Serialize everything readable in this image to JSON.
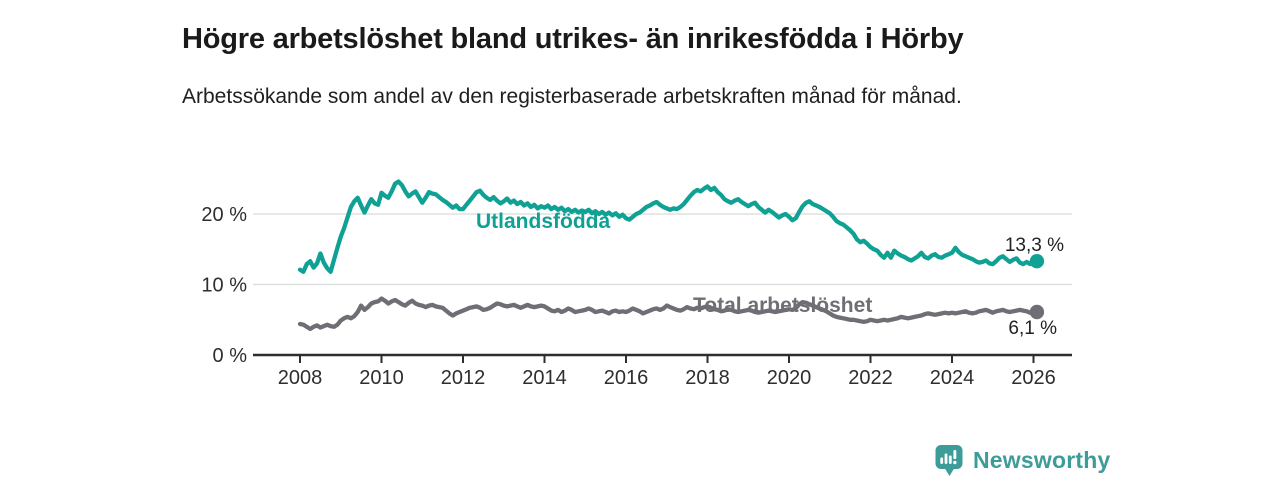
{
  "header": {
    "title": "Högre arbetslöshet bland utrikes- än inrikesfödda i Hörby",
    "subtitle": "Arbetssökande som andel av den registerbaserade arbetskraften månad för månad."
  },
  "chart_data": {
    "type": "line",
    "x_start": "2008-01",
    "x_step": "1 month",
    "xlim": [
      2006.9,
      2027.0
    ],
    "ylim": [
      0,
      26
    ],
    "grid": "horizontal only",
    "legend_position": "inline labels on lines",
    "xticks": [
      {
        "year": 2008,
        "label": "2008"
      },
      {
        "year": 2010,
        "label": "2010"
      },
      {
        "year": 2012,
        "label": "2012"
      },
      {
        "year": 2014,
        "label": "2014"
      },
      {
        "year": 2016,
        "label": "2016"
      },
      {
        "year": 2018,
        "label": "2018"
      },
      {
        "year": 2020,
        "label": "2020"
      },
      {
        "year": 2022,
        "label": "2022"
      },
      {
        "year": 2024,
        "label": "2024"
      },
      {
        "year": 2026,
        "label": "2026"
      }
    ],
    "yticks": [
      {
        "value": 0,
        "label": "0 %"
      },
      {
        "value": 10,
        "label": "10 %"
      },
      {
        "value": 20,
        "label": "20 %"
      }
    ],
    "colors": {
      "grid": "#dbdbdb",
      "axis": "#2e2e2e"
    },
    "series": [
      {
        "name": "Utlandsfödda",
        "color": "#10a195",
        "end_label": "13,3 %",
        "end_value": 13.3,
        "values": [
          12.1,
          11.8,
          12.9,
          13.3,
          12.4,
          13.0,
          14.4,
          13.1,
          12.3,
          11.8,
          13.5,
          15.2,
          16.8,
          18.0,
          19.5,
          21.0,
          21.8,
          22.3,
          21.2,
          20.2,
          21.2,
          22.1,
          21.5,
          21.3,
          23.0,
          22.6,
          22.3,
          23.2,
          24.3,
          24.6,
          24.1,
          23.2,
          22.5,
          22.9,
          23.2,
          22.4,
          21.6,
          22.3,
          23.1,
          22.9,
          22.8,
          22.4,
          22.0,
          21.7,
          21.3,
          20.9,
          21.2,
          20.7,
          20.7,
          21.3,
          21.9,
          22.5,
          23.1,
          23.3,
          22.7,
          22.3,
          22.0,
          22.4,
          21.9,
          21.5,
          21.8,
          22.2,
          21.6,
          21.9,
          21.4,
          21.7,
          21.2,
          21.5,
          21.0,
          21.3,
          20.8,
          21.1,
          20.9,
          21.2,
          20.7,
          21.0,
          20.6,
          20.9,
          20.4,
          20.7,
          20.3,
          20.6,
          20.2,
          20.5,
          20.3,
          20.6,
          20.1,
          20.4,
          20.0,
          20.3,
          19.9,
          20.2,
          19.8,
          20.1,
          19.6,
          19.9,
          19.4,
          19.2,
          19.6,
          20.0,
          20.2,
          20.6,
          21.0,
          21.2,
          21.5,
          21.7,
          21.3,
          21.0,
          20.8,
          20.6,
          20.8,
          20.7,
          21.0,
          21.4,
          22.0,
          22.6,
          23.1,
          23.4,
          23.2,
          23.6,
          23.9,
          23.4,
          23.7,
          23.1,
          22.7,
          22.1,
          21.8,
          21.6,
          21.9,
          22.1,
          21.7,
          21.4,
          21.1,
          21.4,
          21.6,
          21.0,
          20.6,
          20.2,
          20.6,
          20.3,
          19.9,
          19.5,
          19.8,
          20.0,
          19.6,
          19.1,
          19.4,
          20.3,
          21.1,
          21.6,
          21.8,
          21.4,
          21.2,
          21.0,
          20.7,
          20.4,
          20.1,
          19.6,
          19.0,
          18.7,
          18.5,
          18.1,
          17.7,
          17.2,
          16.4,
          16.0,
          16.2,
          15.8,
          15.3,
          15.0,
          14.8,
          14.2,
          13.8,
          14.5,
          13.8,
          14.8,
          14.4,
          14.1,
          13.9,
          13.6,
          13.4,
          13.7,
          14.0,
          14.5,
          13.9,
          13.7,
          14.1,
          14.3,
          13.9,
          13.8,
          14.1,
          14.3,
          14.5,
          15.2,
          14.6,
          14.2,
          14.0,
          13.8,
          13.6,
          13.3,
          13.1,
          13.2,
          13.4,
          13.0,
          12.9,
          13.3,
          13.8,
          14.0,
          13.6,
          13.2,
          13.5,
          13.7,
          13.1,
          12.9,
          13.2,
          12.9,
          13.1,
          13.3
        ]
      },
      {
        "name": "Total arbetslöshet",
        "color": "#6f6e75",
        "end_label": "6,1 %",
        "end_value": 6.1,
        "values": [
          4.4,
          4.3,
          4.0,
          3.7,
          4.0,
          4.2,
          3.9,
          4.1,
          4.3,
          4.1,
          4.0,
          4.3,
          4.9,
          5.2,
          5.4,
          5.2,
          5.5,
          6.1,
          7.0,
          6.4,
          6.8,
          7.3,
          7.5,
          7.6,
          8.0,
          7.7,
          7.3,
          7.6,
          7.8,
          7.5,
          7.2,
          7.0,
          7.4,
          7.7,
          7.3,
          7.1,
          7.0,
          6.8,
          7.0,
          7.1,
          6.9,
          6.8,
          6.7,
          6.3,
          5.9,
          5.6,
          5.9,
          6.1,
          6.3,
          6.5,
          6.7,
          6.8,
          6.9,
          6.7,
          6.4,
          6.5,
          6.7,
          7.0,
          7.3,
          7.2,
          7.0,
          6.9,
          7.0,
          7.1,
          6.9,
          6.7,
          6.9,
          7.1,
          6.9,
          6.8,
          6.9,
          7.0,
          6.9,
          6.6,
          6.3,
          6.2,
          6.4,
          6.1,
          6.3,
          6.6,
          6.4,
          6.1,
          6.2,
          6.3,
          6.4,
          6.6,
          6.4,
          6.1,
          6.2,
          6.3,
          6.1,
          5.9,
          6.2,
          6.3,
          6.1,
          6.2,
          6.1,
          6.3,
          6.6,
          6.4,
          6.2,
          5.9,
          6.1,
          6.3,
          6.5,
          6.6,
          6.4,
          6.6,
          7.0,
          6.8,
          6.6,
          6.4,
          6.3,
          6.5,
          6.8,
          6.6,
          6.5,
          6.7,
          6.6,
          6.8,
          6.9,
          6.7,
          6.5,
          6.4,
          6.2,
          6.3,
          6.5,
          6.4,
          6.2,
          6.1,
          6.2,
          6.3,
          6.4,
          6.3,
          6.1,
          6.0,
          6.1,
          6.2,
          6.3,
          6.2,
          6.1,
          6.2,
          6.3,
          6.4,
          6.5,
          6.4,
          6.6,
          7.2,
          7.5,
          7.4,
          7.2,
          7.0,
          6.8,
          6.6,
          6.4,
          6.2,
          5.9,
          5.6,
          5.4,
          5.3,
          5.2,
          5.1,
          5.0,
          5.0,
          4.9,
          4.8,
          4.7,
          4.8,
          5.0,
          4.9,
          4.8,
          4.9,
          5.0,
          4.9,
          5.0,
          5.1,
          5.2,
          5.4,
          5.3,
          5.2,
          5.3,
          5.4,
          5.5,
          5.6,
          5.8,
          5.9,
          5.8,
          5.7,
          5.8,
          5.9,
          6.0,
          5.9,
          6.0,
          5.9,
          6.0,
          6.1,
          6.2,
          6.0,
          5.9,
          6.0,
          6.2,
          6.3,
          6.4,
          6.2,
          6.0,
          6.2,
          6.3,
          6.4,
          6.2,
          6.1,
          6.2,
          6.3,
          6.4,
          6.3,
          6.2,
          6.0,
          6.0,
          6.1
        ]
      }
    ]
  },
  "footer": {
    "brand": "Newsworthy",
    "logo_icon": "bar-chart-speech-bubble-icon",
    "logo_color": "#3e9c98"
  }
}
